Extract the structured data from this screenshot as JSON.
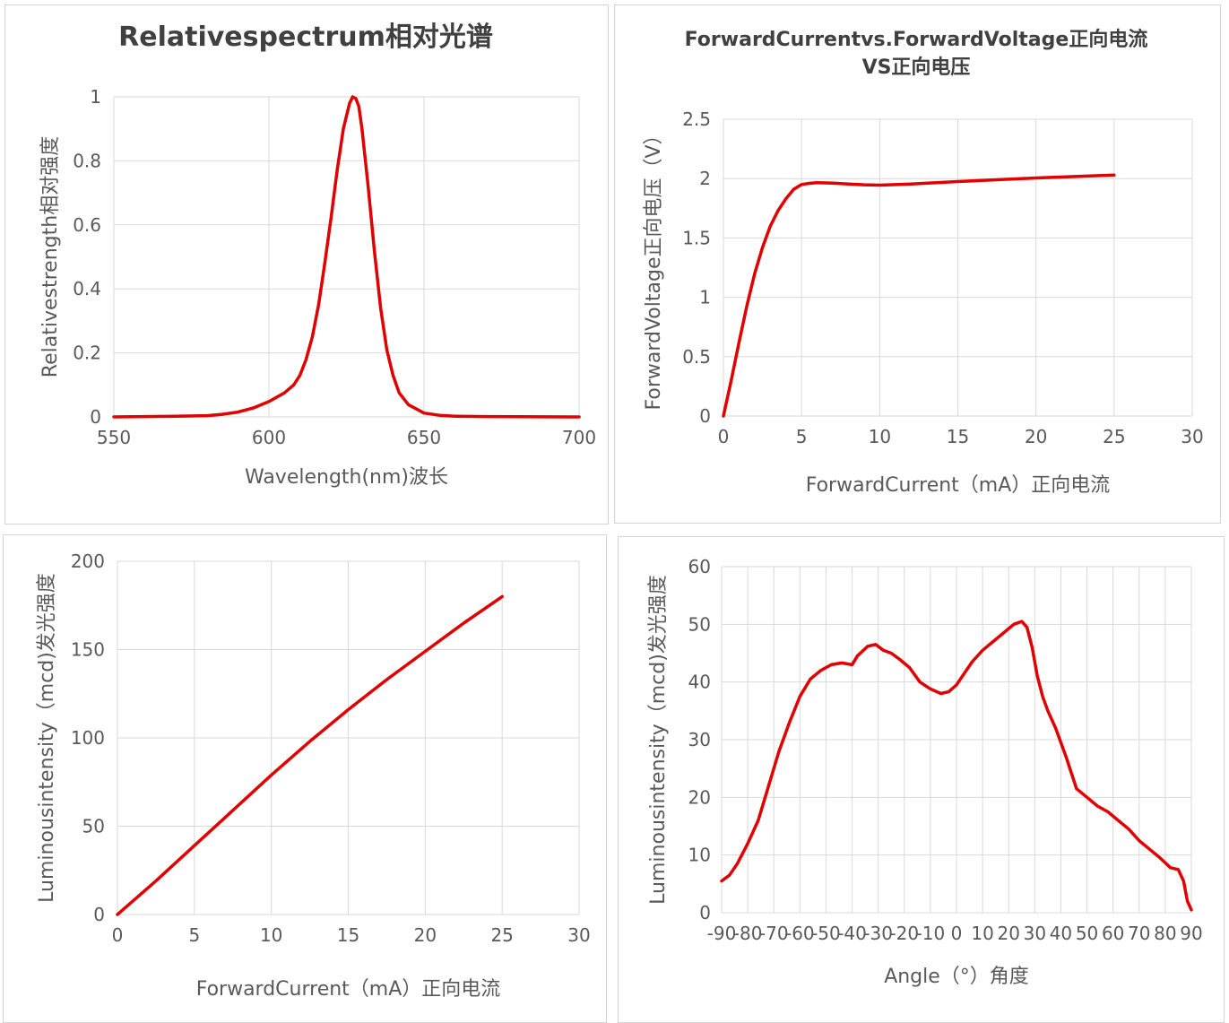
{
  "chart_data": [
    {
      "type": "line",
      "title": "Relativespectrum相对光谱",
      "xlabel": "Wavelength(nm)波长",
      "ylabel": "Relativestrength相对强度",
      "xlim": [
        550,
        700
      ],
      "ylim": [
        0,
        1
      ],
      "xticks": [
        "550",
        "600",
        "650",
        "700"
      ],
      "yticks": [
        "0",
        "0.2",
        "0.4",
        "0.6",
        "0.8",
        "1"
      ],
      "grid": true,
      "series": [
        {
          "color": "#e00000",
          "x": [
            550,
            570,
            580,
            585,
            590,
            595,
            600,
            605,
            608,
            610,
            612,
            614,
            616,
            618,
            620,
            622,
            624,
            626,
            627,
            628,
            629,
            630,
            632,
            634,
            636,
            638,
            640,
            642,
            645,
            650,
            655,
            660,
            670,
            680,
            700
          ],
          "y": [
            0,
            0.002,
            0.004,
            0.008,
            0.015,
            0.028,
            0.048,
            0.075,
            0.1,
            0.13,
            0.18,
            0.25,
            0.35,
            0.48,
            0.62,
            0.77,
            0.9,
            0.98,
            1.0,
            0.995,
            0.97,
            0.9,
            0.72,
            0.52,
            0.34,
            0.21,
            0.13,
            0.075,
            0.038,
            0.012,
            0.005,
            0.002,
            0.001,
            0.0005,
            0
          ]
        }
      ]
    },
    {
      "type": "line",
      "title": "ForwardCurrentvs.ForwardVoltage正向电流 VS正向电压",
      "title_lines": [
        "ForwardCurrentvs.ForwardVoltage正向电流",
        "VS正向电压"
      ],
      "xlabel": "ForwardCurrent（mA）正向电流",
      "ylabel": "ForwardVoltage正向电压（V）",
      "xlim": [
        0,
        30
      ],
      "ylim": [
        0,
        2.5
      ],
      "xticks": [
        "0",
        "5",
        "10",
        "15",
        "20",
        "25",
        "30"
      ],
      "yticks": [
        "0",
        "0.5",
        "1",
        "1.5",
        "2",
        "2.5"
      ],
      "grid": true,
      "series": [
        {
          "color": "#e00000",
          "x": [
            0,
            0.5,
            1,
            1.5,
            2,
            2.5,
            3,
            3.5,
            4,
            4.5,
            5,
            5.5,
            6,
            7,
            8,
            9,
            10,
            12,
            15,
            20,
            25
          ],
          "y": [
            0,
            0.3,
            0.62,
            0.93,
            1.2,
            1.42,
            1.6,
            1.73,
            1.83,
            1.91,
            1.95,
            1.96,
            1.965,
            1.962,
            1.955,
            1.948,
            1.945,
            1.955,
            1.975,
            2.005,
            2.03
          ]
        }
      ]
    },
    {
      "type": "line",
      "xlabel": "ForwardCurrent（mA）正向电流",
      "ylabel": "Luminousintensity（mcd)发光强度",
      "xlim": [
        0,
        30
      ],
      "ylim": [
        0,
        200
      ],
      "xticks": [
        "0",
        "5",
        "10",
        "15",
        "20",
        "25",
        "30"
      ],
      "yticks": [
        "0",
        "50",
        "100",
        "150",
        "200"
      ],
      "grid": true,
      "series": [
        {
          "color": "#e00000",
          "x": [
            0,
            2.5,
            5,
            7.5,
            10,
            12.5,
            15,
            17.5,
            20,
            22.5,
            25
          ],
          "y": [
            0,
            19,
            39,
            59,
            79,
            98,
            116,
            133,
            149,
            165,
            180
          ]
        }
      ]
    },
    {
      "type": "line",
      "xlabel": "Angle（°）角度",
      "ylabel": "Luminousintensity（mcd)发光强度",
      "xlim": [
        -90,
        90
      ],
      "ylim": [
        0,
        60
      ],
      "xticks": [
        "-90",
        "-80",
        "-70",
        "-60",
        "-50",
        "-40",
        "-30",
        "-20",
        "-10",
        "0",
        "10",
        "20",
        "30",
        "40",
        "50",
        "60",
        "70",
        "80",
        "90"
      ],
      "yticks": [
        "0",
        "10",
        "20",
        "30",
        "40",
        "50",
        "60"
      ],
      "grid": true,
      "series": [
        {
          "color": "#e00000",
          "x": [
            -90,
            -87,
            -84,
            -80,
            -76,
            -72,
            -68,
            -64,
            -60,
            -56,
            -52,
            -48,
            -44,
            -40,
            -38,
            -34,
            -31,
            -28,
            -25,
            -22,
            -18,
            -14,
            -10,
            -6,
            -3,
            0,
            3,
            6,
            10,
            14,
            18,
            22,
            25,
            27,
            29,
            31,
            33,
            35,
            38,
            42,
            46,
            50,
            54,
            58,
            62,
            66,
            70,
            74,
            78,
            82,
            85,
            87,
            88.5,
            90
          ],
          "y": [
            5.5,
            6.5,
            8.5,
            12,
            16,
            22,
            28,
            33,
            37.5,
            40.5,
            42,
            43,
            43.3,
            43,
            44.5,
            46.2,
            46.5,
            45.5,
            45,
            44,
            42.5,
            40,
            38.8,
            38,
            38.3,
            39.5,
            41.5,
            43.5,
            45.5,
            47,
            48.5,
            50,
            50.5,
            49.5,
            46,
            41,
            37.5,
            35,
            32,
            27,
            21.5,
            20,
            18.5,
            17.5,
            16,
            14.5,
            12.5,
            11,
            9.5,
            7.8,
            7.5,
            5.5,
            2,
            0.5
          ]
        }
      ]
    }
  ]
}
